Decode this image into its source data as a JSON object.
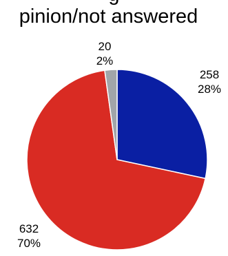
{
  "chart_data": {
    "type": "pie",
    "title_lines": [
      "g",
      "pinion/not answered"
    ],
    "slices": [
      {
        "value": 258,
        "percent": "28%",
        "color": "#0a1fa3"
      },
      {
        "value": 632,
        "percent": "70%",
        "color": "#d92b23"
      },
      {
        "value": 20,
        "percent": "2%",
        "color": "#a1a5a9"
      }
    ],
    "start_angle_deg": 0,
    "direction": "clockwise",
    "legend": "none"
  }
}
